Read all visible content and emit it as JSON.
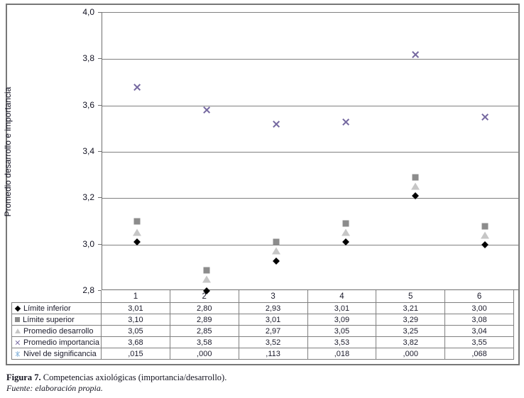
{
  "figure": {
    "caption_label": "Figura 7.",
    "caption_text": " Competencias axiológicas (importancia/desarrollo).",
    "source": "Fuente: elaboración propia."
  },
  "chart_data": {
    "type": "scatter",
    "title": "",
    "xlabel": "",
    "ylabel": "Promedio desarrollo e importancia",
    "categories": [
      "1",
      "2",
      "3",
      "4",
      "5",
      "6"
    ],
    "ylim": [
      2.8,
      4.0
    ],
    "yticks": [
      "4,0",
      "3,8",
      "3,6",
      "3,4",
      "3,2",
      "3,0",
      "2,8"
    ],
    "grid": true,
    "legend_position": "table-left-column",
    "colors": {
      "limite_inferior": "#000000",
      "limite_superior": "#8c8c8c",
      "promedio_desarrollo": "#c6c6c6",
      "promedio_importancia": "#7568a0",
      "nivel_significancia": "#8ab6dd",
      "gridline": "#808080"
    },
    "series": [
      {
        "name": "Límite inferior",
        "marker": "diamond",
        "color": "#000000",
        "values": [
          3.01,
          2.8,
          2.93,
          3.01,
          3.21,
          3.0
        ],
        "labels": [
          "3,01",
          "2,80",
          "2,93",
          "3,01",
          "3,21",
          "3,00"
        ]
      },
      {
        "name": "Límite superior",
        "marker": "square",
        "color": "#8c8c8c",
        "values": [
          3.1,
          2.89,
          3.01,
          3.09,
          3.29,
          3.08
        ],
        "labels": [
          "3,10",
          "2,89",
          "3,01",
          "3,09",
          "3,29",
          "3,08"
        ]
      },
      {
        "name": "Promedio desarrollo",
        "marker": "triangle",
        "color": "#c6c6c6",
        "values": [
          3.05,
          2.85,
          2.97,
          3.05,
          3.25,
          3.04
        ],
        "labels": [
          "3,05",
          "2,85",
          "2,97",
          "3,05",
          "3,25",
          "3,04"
        ]
      },
      {
        "name": "Promedio importancia",
        "marker": "x",
        "color": "#7568a0",
        "values": [
          3.68,
          3.58,
          3.52,
          3.53,
          3.82,
          3.55
        ],
        "labels": [
          "3,68",
          "3,58",
          "3,52",
          "3,53",
          "3,82",
          "3,55"
        ]
      },
      {
        "name": "Nivel de significancia",
        "marker": "star",
        "color": "#8ab6dd",
        "values": [
          0.015,
          0.0,
          0.113,
          0.018,
          0.0,
          0.068
        ],
        "labels": [
          ",015",
          ",000",
          ",113",
          ",018",
          ",000",
          ",068"
        ]
      }
    ]
  }
}
